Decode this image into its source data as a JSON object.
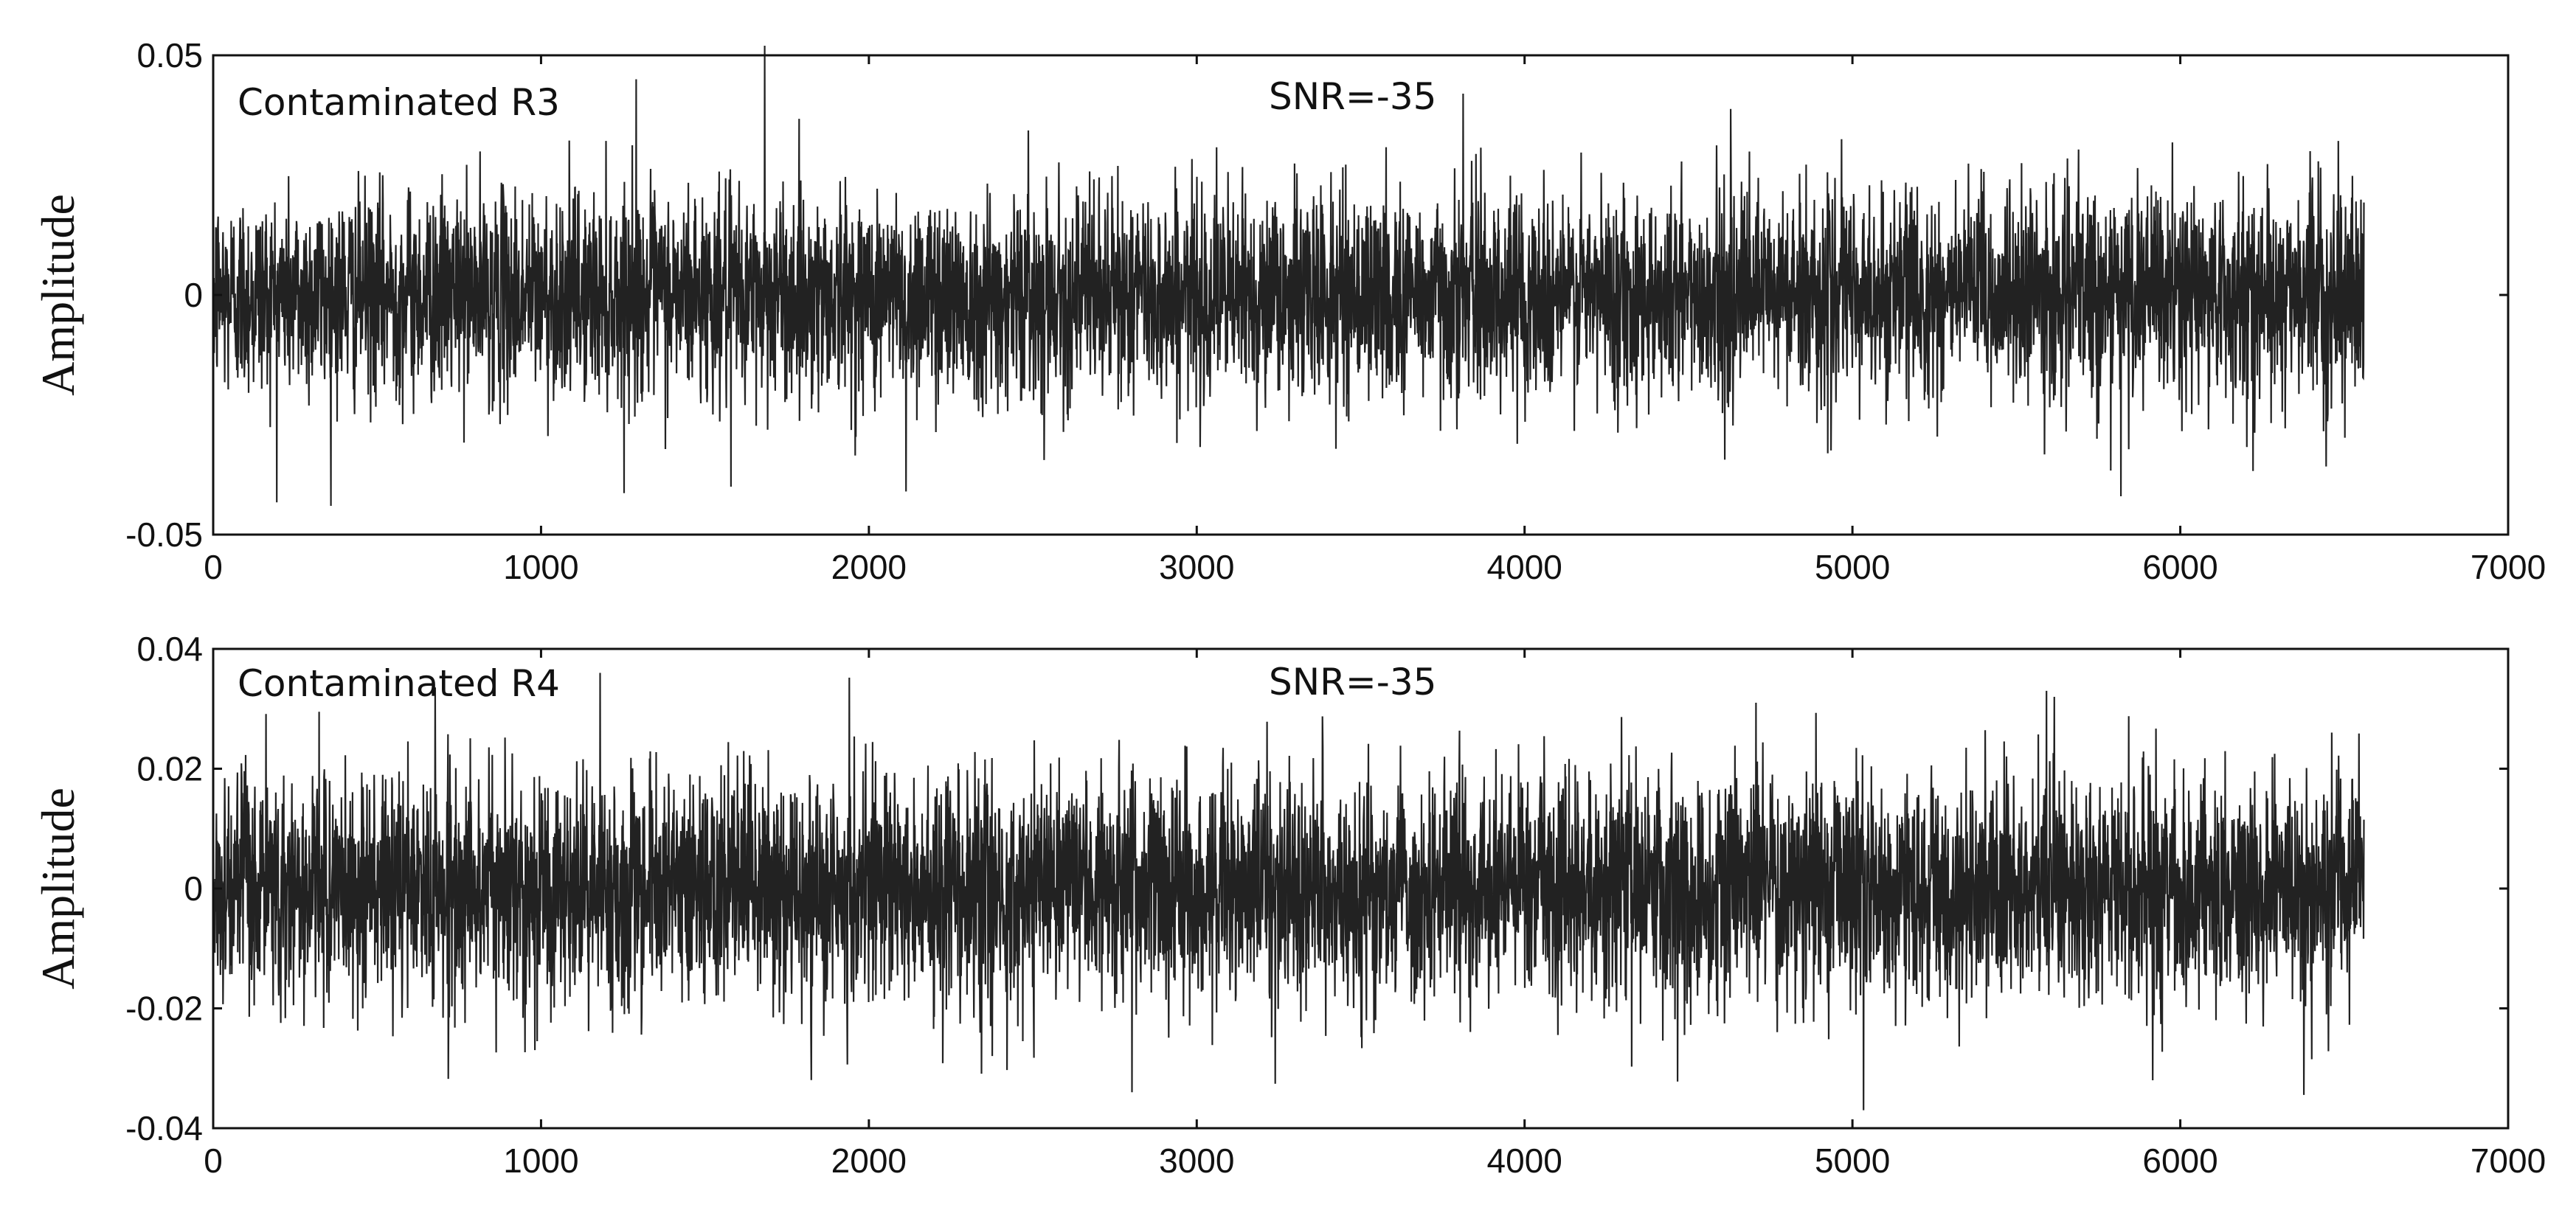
{
  "chart_data": [
    {
      "type": "line",
      "ylabel": "Amplitude",
      "xlim": [
        0,
        7000
      ],
      "ylim": [
        -0.05,
        0.05
      ],
      "x_ticks": [
        "0",
        "1000",
        "2000",
        "3000",
        "4000",
        "5000",
        "6000",
        "7000"
      ],
      "y_ticks": [
        "-0.05",
        "0",
        "0.05"
      ],
      "grid": false,
      "annotations": [
        "Contaminated R3",
        "SNR=-35"
      ],
      "series": [
        {
          "color": "#222222",
          "n_samples": 6560,
          "x_range": [
            0,
            6560
          ],
          "envelope_typical": [
            -0.02,
            0.025
          ],
          "peak_values": [
            0.052,
            0.045,
            0.042,
            -0.042,
            -0.041,
            -0.04
          ]
        }
      ]
    },
    {
      "type": "line",
      "ylabel": "Amplitude",
      "xlim": [
        0,
        7000
      ],
      "ylim": [
        -0.04,
        0.04
      ],
      "x_ticks": [
        "0",
        "1000",
        "2000",
        "3000",
        "4000",
        "5000",
        "6000",
        "7000"
      ],
      "y_ticks": [
        "-0.04",
        "-0.02",
        "0",
        "0.02",
        "0.04"
      ],
      "grid": false,
      "annotations": [
        "Contaminated R4",
        "SNR=-35"
      ],
      "series": [
        {
          "color": "#222222",
          "n_samples": 6560,
          "x_range": [
            0,
            6560
          ],
          "envelope_typical": [
            -0.02,
            0.02
          ],
          "peak_values": [
            0.036,
            0.033,
            0.032,
            -0.037,
            -0.034,
            -0.032
          ]
        }
      ]
    }
  ]
}
